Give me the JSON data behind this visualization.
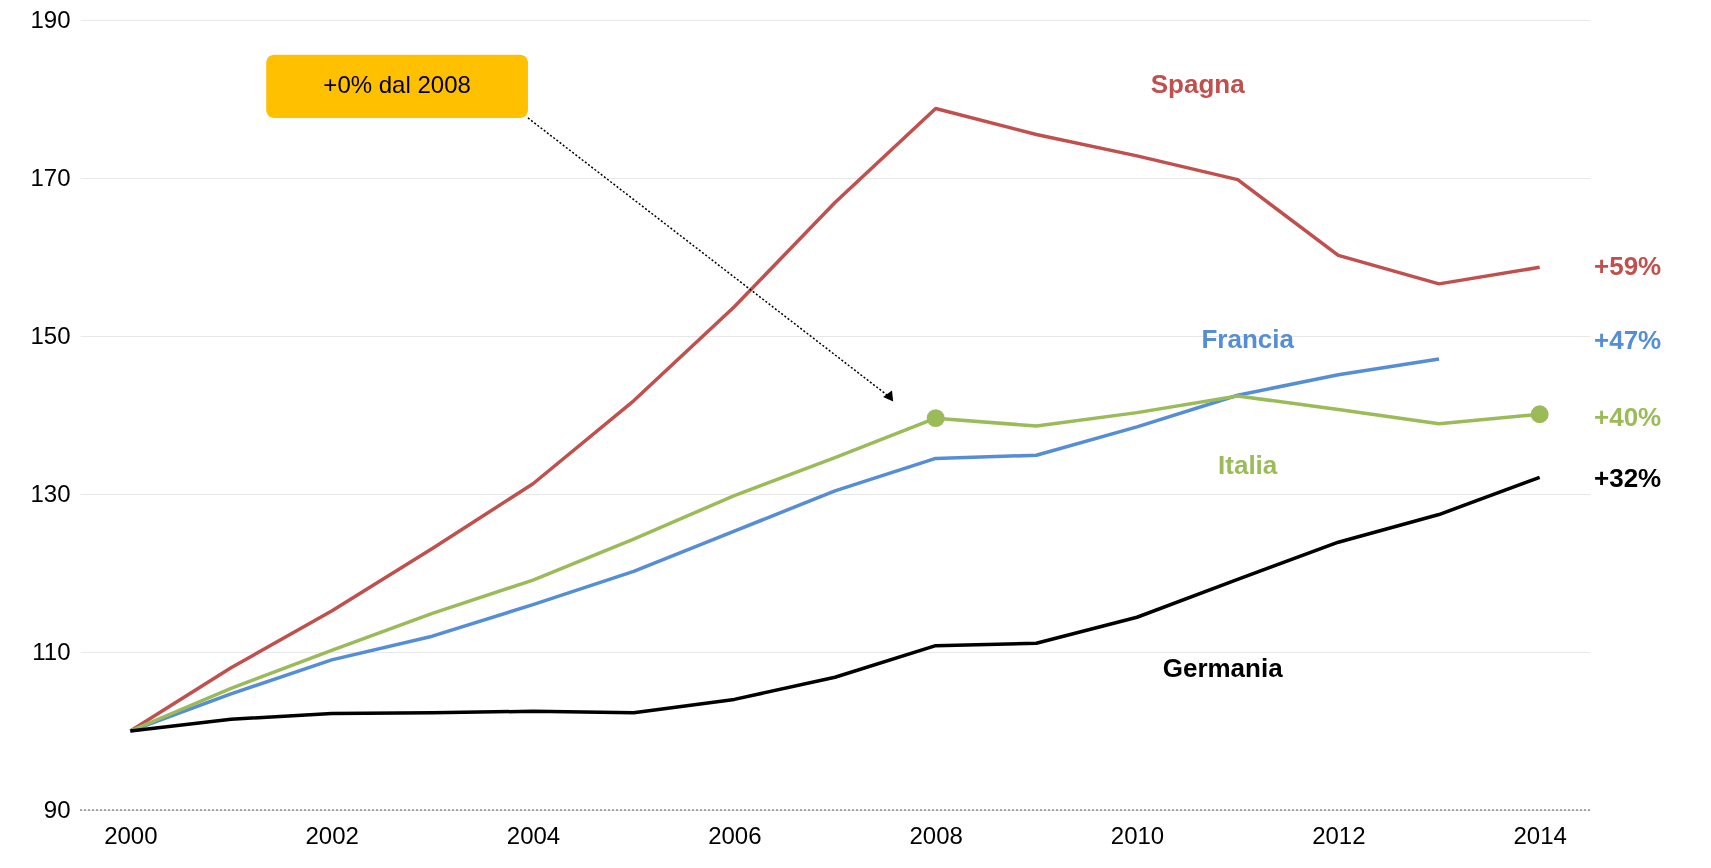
{
  "chart_data": {
    "type": "line",
    "x": [
      2000,
      2001,
      2002,
      2003,
      2004,
      2005,
      2006,
      2007,
      2008,
      2009,
      2010,
      2011,
      2012,
      2013,
      2014
    ],
    "series": [
      {
        "name": "Spagna",
        "color": "#c0504d",
        "values": [
          100,
          108,
          115.2,
          123.1,
          131.3,
          141.8,
          153.7,
          166.9,
          178.8,
          175.5,
          172.8,
          169.8,
          160.2,
          156.6,
          158.7
        ]
      },
      {
        "name": "Francia",
        "color": "#558ed5",
        "values": [
          100,
          104.7,
          109,
          112,
          116,
          120.2,
          125.3,
          130.4,
          134.5,
          134.9,
          138.5,
          142.5,
          145.1,
          147.1,
          null
        ]
      },
      {
        "name": "Italia",
        "color": "#9bbb59",
        "values": [
          100,
          105.4,
          110.2,
          114.9,
          119.1,
          124.3,
          129.8,
          134.6,
          139.6,
          138.6,
          140.3,
          142.4,
          140.7,
          138.9,
          140.1
        ]
      },
      {
        "name": "Germania",
        "color": "#000000",
        "values": [
          100,
          101.5,
          102.2,
          102.3,
          102.5,
          102.3,
          104,
          106.8,
          110.8,
          111.1,
          114.4,
          119.2,
          123.9,
          127.4,
          132.1
        ]
      },
      {
        "type": "scatter",
        "color": "#9bbb59",
        "x": [
          2008,
          2014
        ],
        "values": [
          139.6,
          140.1
        ]
      }
    ],
    "annotations": [
      "+59%",
      "+47%",
      "+40%",
      "+32%",
      "+0% dal 2008"
    ],
    "xlim": [
      1999.5,
      2014.5
    ],
    "xticks": [
      2000,
      2002,
      2004,
      2006,
      2008,
      2010,
      2012,
      2014
    ],
    "ylim": [
      90,
      190
    ],
    "yticks": [
      90,
      110,
      130,
      150,
      170,
      190
    ],
    "grid": "y",
    "line_style": "solid"
  }
}
